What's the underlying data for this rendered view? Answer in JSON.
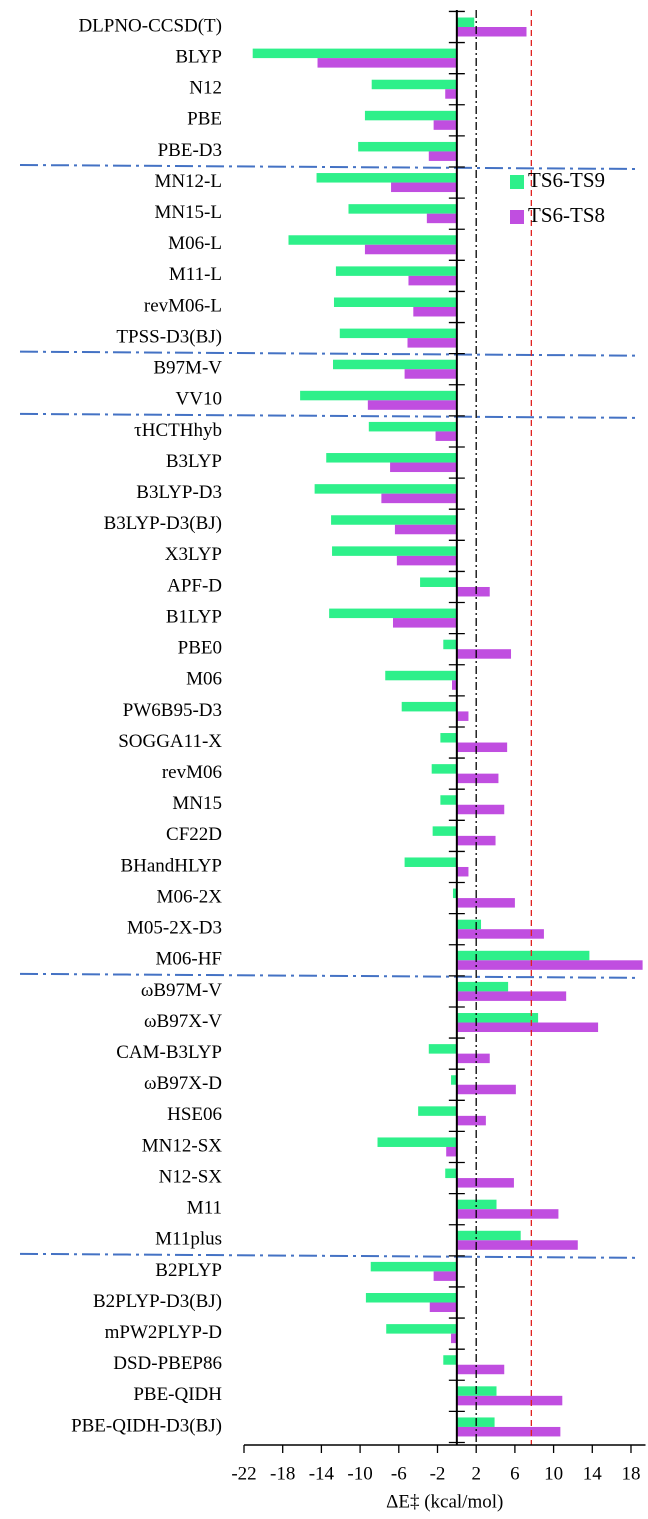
{
  "chart_data": {
    "type": "barh",
    "categories": [
      "DLPNO-CCSD(T)",
      "BLYP",
      "N12",
      "PBE",
      "PBE-D3",
      "MN12-L",
      "MN15-L",
      "M06-L",
      "M11-L",
      "revM06-L",
      "TPSS-D3(BJ)",
      "B97M-V",
      "VV10",
      "τHCTHhyb",
      "B3LYP",
      "B3LYP-D3",
      "B3LYP-D3(BJ)",
      "X3LYP",
      "APF-D",
      "B1LYP",
      "PBE0",
      "M06",
      "PW6B95-D3",
      "SOGGA11-X",
      "revM06",
      "MN15",
      "CF22D",
      "BHandHLYP",
      "M06-2X",
      "M05-2X-D3",
      "M06-HF",
      "ωB97M-V",
      "ωB97X-V",
      "CAM-B3LYP",
      "ωB97X-D",
      "HSE06",
      "MN12-SX",
      "N12-SX",
      "M11",
      "M11plus",
      "B2PLYP",
      "B2PLYP-D3(BJ)",
      "mPW2PLYP-D",
      "DSD-PBEP86",
      "PBE-QIDH",
      "PBE-QIDH-D3(BJ)"
    ],
    "series": [
      {
        "name": "TS6-TS9",
        "color": "#2ef08a",
        "values": [
          1.8,
          -21.1,
          -8.8,
          -9.5,
          -10.2,
          -14.5,
          -11.2,
          -17.4,
          -12.5,
          -12.7,
          -12.1,
          -12.8,
          -16.2,
          -9.1,
          -13.5,
          -14.7,
          -13.0,
          -12.9,
          -3.8,
          -13.2,
          -1.4,
          -7.4,
          -5.7,
          -1.7,
          -2.6,
          -1.7,
          -2.5,
          -5.4,
          -0.4,
          2.5,
          13.7,
          5.3,
          8.4,
          -2.9,
          -0.6,
          -4.0,
          -8.2,
          -1.2,
          4.1,
          6.6,
          -8.9,
          -9.4,
          -7.3,
          -1.4,
          4.1,
          3.9
        ]
      },
      {
        "name": "TS6-TS8",
        "color": "#c04ee0",
        "values": [
          7.2,
          -14.4,
          -1.2,
          -2.4,
          -2.9,
          -6.8,
          -3.1,
          -9.5,
          -5.0,
          -4.5,
          -5.1,
          -5.4,
          -9.2,
          -2.2,
          -6.9,
          -7.8,
          -6.4,
          -6.2,
          3.4,
          -6.6,
          5.6,
          -0.5,
          1.2,
          5.2,
          4.3,
          4.9,
          4.0,
          1.2,
          6.0,
          9.0,
          19.2,
          11.3,
          14.6,
          3.4,
          6.1,
          3.0,
          -1.1,
          5.9,
          10.5,
          12.5,
          -2.4,
          -2.8,
          -0.6,
          4.9,
          10.9,
          10.7
        ]
      }
    ],
    "x_label": "ΔE‡ (kcal/mol)",
    "xlim": [
      -22,
      19.5
    ],
    "xticks": [
      -22,
      -18,
      -14,
      -10,
      -6,
      -2,
      2,
      6,
      10,
      14,
      18
    ],
    "reference_lines": [
      {
        "value": 2,
        "color": "#000000",
        "style": "dashdot"
      },
      {
        "value": 7.7,
        "color": "#e02020",
        "style": "dashed"
      }
    ],
    "legend": "upper right"
  }
}
